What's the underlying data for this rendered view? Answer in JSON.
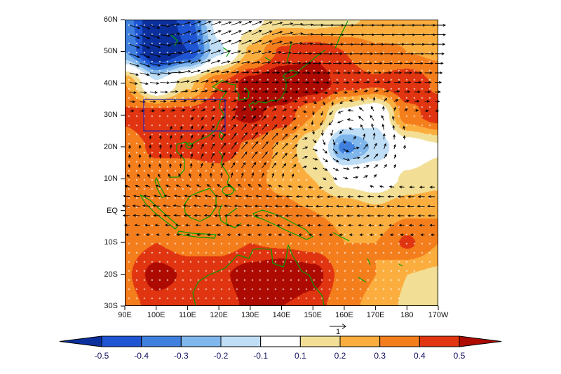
{
  "figure": {
    "background_color": "#ffffff",
    "plot_border_color": "#000000",
    "axis_text_color": "#111111",
    "coastline_color": "#00a000",
    "vector_color": "#000000",
    "stipple_color": "#ffffff",
    "highlight_box_color": "#2222bb",
    "colorbar_text_color": "#101060"
  },
  "chart_data": {
    "type": "heatmap",
    "title": "",
    "xlabel": "",
    "ylabel": "",
    "x_tick_labels": [
      "90E",
      "100E",
      "110E",
      "120E",
      "130E",
      "140E",
      "150E",
      "160E",
      "170E",
      "180",
      "170W"
    ],
    "y_tick_labels": [
      "60N",
      "50N",
      "40N",
      "30N",
      "20N",
      "10N",
      "EQ",
      "10S",
      "20S",
      "30S"
    ],
    "xlim_deg": [
      90,
      190
    ],
    "ylim_deg": [
      -30,
      60
    ],
    "colorbar_levels": [
      -0.5,
      -0.4,
      -0.3,
      -0.2,
      -0.1,
      0.1,
      0.2,
      0.3,
      0.4,
      0.5
    ],
    "colorbar_labels": [
      "-0.5",
      "-0.4",
      "-0.3",
      "-0.2",
      "-0.1",
      "0.1",
      "0.2",
      "0.3",
      "0.4",
      "0.5"
    ],
    "colorbar_colors": [
      "#0b2f9c",
      "#1f55d2",
      "#3f80df",
      "#7fb6ec",
      "#bfdef6",
      "#ffffff",
      "#f2df95",
      "#fbae3e",
      "#f57e1c",
      "#e03510",
      "#ad0a02"
    ],
    "reference_vector_label": "1",
    "highlight_box": {
      "lon_min": 96,
      "lon_max": 122,
      "lat_min": 25,
      "lat_max": 35
    },
    "overlays": [
      "wind-vector-arrows",
      "white-significance-stippling",
      "green-coastlines",
      "blue-highlight-box"
    ],
    "grid": {
      "lons": [
        90,
        100,
        110,
        120,
        130,
        140,
        150,
        160,
        170,
        180,
        190
      ],
      "lats": [
        60,
        50,
        40,
        30,
        20,
        10,
        0,
        -10,
        -20,
        -30
      ],
      "values": [
        [
          -0.35,
          -0.62,
          -0.45,
          -0.05,
          0.06,
          0.16,
          0.14,
          0.18,
          0.22,
          0.28,
          0.24
        ],
        [
          -0.3,
          -0.65,
          -0.5,
          -0.12,
          0.22,
          0.42,
          0.48,
          0.4,
          0.32,
          0.3,
          0.28
        ],
        [
          0.3,
          -0.08,
          0.18,
          0.4,
          0.55,
          0.62,
          0.58,
          0.45,
          0.42,
          0.48,
          0.38
        ],
        [
          0.42,
          0.48,
          0.45,
          0.48,
          0.52,
          0.46,
          0.3,
          0.04,
          -0.06,
          0.36,
          0.46
        ],
        [
          0.35,
          0.42,
          0.42,
          0.45,
          0.38,
          0.28,
          0.1,
          -0.34,
          -0.18,
          0.02,
          0.08
        ],
        [
          0.3,
          0.35,
          0.35,
          0.35,
          0.32,
          0.28,
          0.2,
          0.06,
          0.02,
          0.12,
          0.16
        ],
        [
          0.32,
          0.35,
          0.32,
          0.33,
          0.35,
          0.32,
          0.3,
          0.28,
          0.22,
          0.28,
          0.3
        ],
        [
          0.35,
          0.4,
          0.35,
          0.35,
          0.4,
          0.38,
          0.36,
          0.3,
          0.3,
          0.42,
          0.3
        ],
        [
          0.38,
          0.55,
          0.48,
          0.48,
          0.55,
          0.62,
          0.55,
          0.35,
          0.3,
          0.2,
          0.18
        ],
        [
          0.35,
          0.45,
          0.42,
          0.45,
          0.52,
          0.5,
          0.45,
          0.32,
          0.28,
          0.18,
          0.15
        ]
      ]
    }
  }
}
